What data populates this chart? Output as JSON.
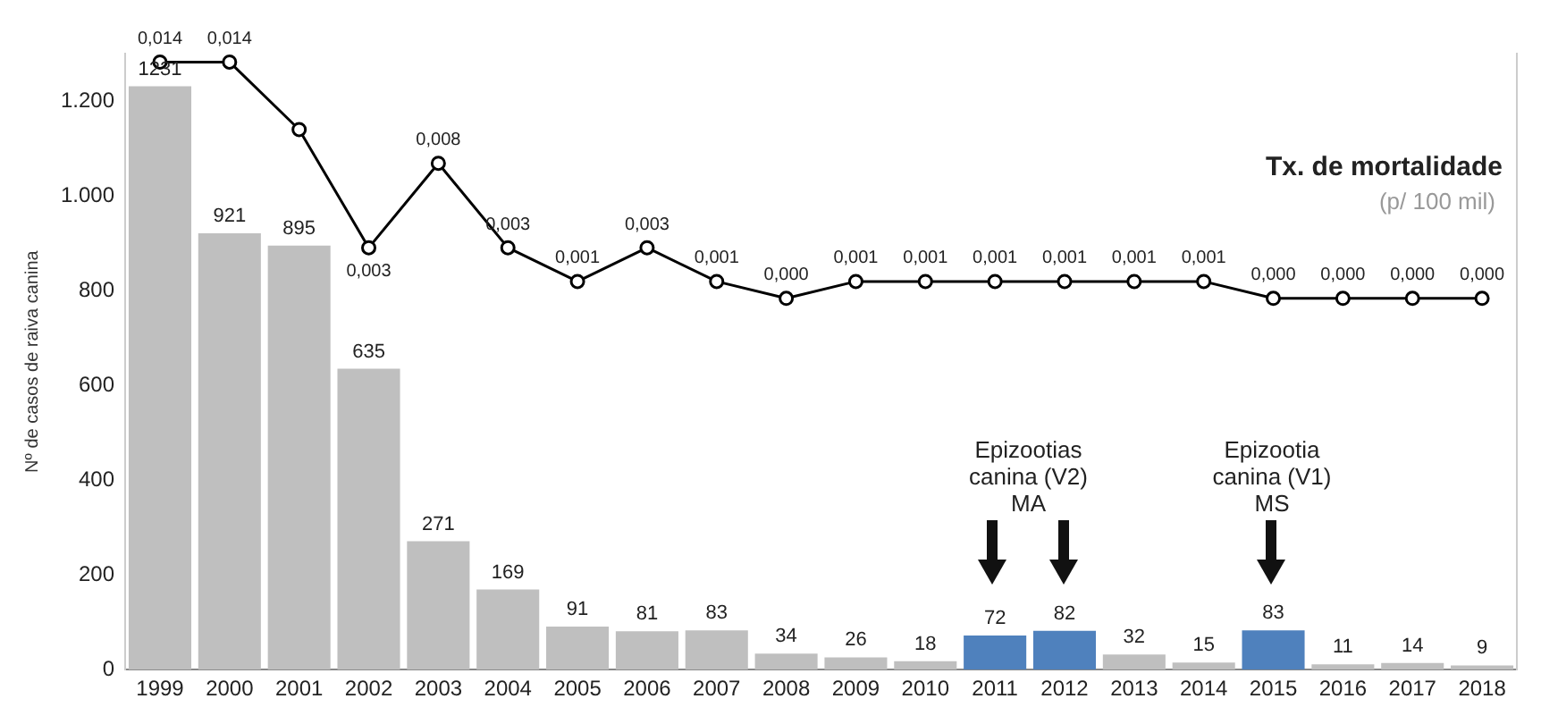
{
  "chart_data": {
    "type": "bar",
    "ylabel": "Nº de casos de raiva canina",
    "categories": [
      "1999",
      "2000",
      "2001",
      "2002",
      "2003",
      "2004",
      "2005",
      "2006",
      "2007",
      "2008",
      "2009",
      "2010",
      "2011",
      "2012",
      "2013",
      "2014",
      "2015",
      "2016",
      "2017",
      "2018"
    ],
    "series": [
      {
        "values": [
          1231,
          921,
          895,
          635,
          271,
          169,
          91,
          81,
          83,
          34,
          26,
          18,
          72,
          82,
          32,
          15,
          83,
          11,
          14,
          9
        ],
        "colors": [
          "#bfbfbf",
          "#bfbfbf",
          "#bfbfbf",
          "#bfbfbf",
          "#bfbfbf",
          "#bfbfbf",
          "#bfbfbf",
          "#bfbfbf",
          "#bfbfbf",
          "#bfbfbf",
          "#bfbfbf",
          "#bfbfbf",
          "#4f81bd",
          "#4f81bd",
          "#bfbfbf",
          "#bfbfbf",
          "#4f81bd",
          "#bfbfbf",
          "#bfbfbf",
          "#bfbfbf"
        ],
        "data_labels": true
      },
      {
        "type": "line",
        "axis": "y2",
        "color": "#000000",
        "values": [
          0.014,
          0.014,
          0.01,
          0.003,
          0.008,
          0.003,
          0.001,
          0.003,
          0.001,
          0.0,
          0.001,
          0.001,
          0.001,
          0.001,
          0.001,
          0.001,
          0.0,
          0.0,
          0.0,
          0.0
        ],
        "value_labels": [
          "0,014",
          "0,014",
          null,
          "0,003",
          "0,008",
          "0,003",
          "0,001",
          "0,003",
          "0,001",
          "0,000",
          "0,001",
          "0,001",
          "0,001",
          "0,001",
          "0,001",
          "0,001",
          "0,000",
          "0,000",
          "0,000",
          "0,000"
        ]
      }
    ],
    "ylim": [
      0,
      1300
    ],
    "yticks": [
      0,
      200,
      400,
      600,
      800,
      {
        "value": 1000,
        "label": "1.000"
      },
      {
        "value": 1200,
        "label": "1.200"
      }
    ],
    "y2lim": [
      -0.022,
      0.0145
    ],
    "grid": false,
    "legend": false,
    "marker": "circle",
    "annotations": [
      "Tx. de mortalidade",
      "(p/ 100 mil)",
      "Epizootias\ncanina (V2)\nMA",
      "Epizootia\ncanina (V1)\nMS"
    ]
  }
}
